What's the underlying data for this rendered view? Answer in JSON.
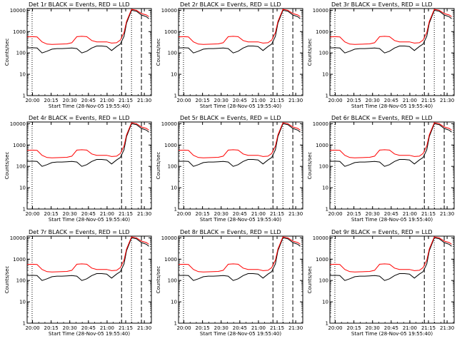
{
  "chart_data": {
    "type": "line",
    "figure": {
      "y_scale": "log",
      "ylim": [
        1,
        12000
      ],
      "y_ticks": [
        1,
        10,
        100,
        1000,
        10000
      ],
      "y_tick_labels": [
        "1",
        "10",
        "100",
        "1000",
        "10000"
      ],
      "x_tick_labels": [
        "20:00",
        "20:15",
        "20:30",
        "20:45",
        "21:00",
        "21:15",
        "21:30"
      ],
      "xlabel": "Start Time (28-Nov-05 19:55:40)",
      "ylabel": "Counts/sec",
      "colors": {
        "events": "#000000",
        "lld": "#ff0000",
        "axes": "#000000"
      }
    },
    "panels": [
      {
        "title": "Det 1r BLACK = Events, RED = LLD"
      },
      {
        "title": "Det 2r BLACK = Events, RED = LLD"
      },
      {
        "title": "Det 3r BLACK = Events, RED = LLD"
      },
      {
        "title": "Det 4r BLACK = Events, RED = LLD"
      },
      {
        "title": "Det 5r BLACK = Events, RED = LLD"
      },
      {
        "title": "Det 6r BLACK = Events, RED = LLD"
      },
      {
        "title": "Det 7r BLACK = Events, RED = LLD"
      },
      {
        "title": "Det 8r BLACK = Events, RED = LLD"
      },
      {
        "title": "Det 9r BLACK = Events, RED = LLD"
      }
    ],
    "x_minutes": [
      0,
      4,
      8,
      12,
      16,
      20,
      24,
      28,
      32,
      36,
      40,
      44,
      48,
      52,
      56,
      60,
      64,
      68,
      72,
      75,
      78,
      80,
      84,
      88,
      92,
      96,
      98
    ],
    "series": [
      {
        "values": [
          170,
          175,
          170,
          100,
          120,
          150,
          160,
          160,
          165,
          170,
          160,
          100,
          120,
          170,
          210,
          210,
          200,
          130,
          200,
          260,
          600,
          2500,
          10000,
          9000,
          6000,
          5000,
          4000
        ]
      },
      {
        "values": [
          560,
          580,
          560,
          330,
          260,
          250,
          255,
          260,
          265,
          300,
          580,
          600,
          580,
          380,
          330,
          330,
          330,
          290,
          300,
          400,
          900,
          3000,
          11000,
          10000,
          7000,
          6000,
          5000
        ]
      }
    ],
    "vertical_lines": [
      {
        "x": 4,
        "style": "dotted"
      },
      {
        "x": 76,
        "style": "dashed"
      },
      {
        "x": 84,
        "style": "dotted"
      },
      {
        "x": 92,
        "style": "dashed"
      }
    ]
  }
}
